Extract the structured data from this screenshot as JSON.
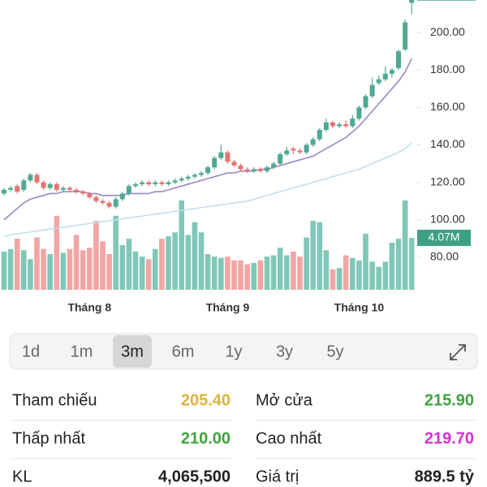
{
  "chart_data": {
    "type": "candlestick",
    "categories": [
      null,
      null,
      null,
      null,
      null,
      null,
      null,
      null,
      null,
      null,
      null,
      null,
      null,
      "Tháng 8",
      null,
      null,
      null,
      null,
      null,
      null,
      null,
      null,
      null,
      null,
      null,
      null,
      null,
      null,
      null,
      null,
      null,
      null,
      null,
      null,
      "Tháng 9",
      null,
      null,
      null,
      null,
      null,
      null,
      null,
      null,
      null,
      null,
      null,
      null,
      null,
      null,
      null,
      null,
      null,
      null,
      null,
      "Tháng 10",
      null,
      null,
      null,
      null,
      null,
      null,
      null,
      null
    ],
    "open": [
      114,
      116,
      118,
      116,
      121,
      124,
      120,
      117,
      119,
      116,
      117,
      116,
      115,
      114,
      112,
      110,
      109,
      107,
      111,
      114,
      118,
      119,
      120,
      119,
      120,
      119,
      120,
      121,
      122,
      123,
      124,
      125,
      128,
      133,
      136,
      131,
      129,
      127,
      126,
      127,
      126,
      128,
      130,
      135,
      138,
      137,
      136,
      140,
      143,
      148,
      152,
      150,
      151,
      150,
      154,
      160,
      166,
      173,
      175,
      178,
      181,
      191,
      215.9
    ],
    "high": [
      117,
      118,
      119,
      122,
      125,
      125,
      121,
      120,
      120,
      118,
      118,
      117,
      116,
      115,
      113,
      111,
      110,
      112,
      115,
      119,
      120,
      121,
      121,
      121,
      121,
      121,
      122,
      123,
      124,
      125,
      126,
      129,
      134,
      140,
      137,
      132,
      130,
      128,
      128,
      128,
      129,
      131,
      136,
      139,
      139,
      138,
      141,
      144,
      149,
      154,
      153,
      152,
      153,
      156,
      161,
      167,
      176,
      177,
      182,
      181,
      191,
      207,
      219.7
    ],
    "low": [
      113,
      115,
      114,
      115,
      120,
      119,
      116,
      116,
      115,
      115,
      115,
      114,
      113,
      111,
      109,
      108,
      106,
      106,
      110,
      113,
      117,
      118,
      118,
      118,
      118,
      118,
      119,
      120,
      121,
      122,
      123,
      124,
      127,
      132,
      130,
      128,
      126,
      125,
      125,
      125,
      125,
      127,
      129,
      134,
      135,
      135,
      135,
      139,
      142,
      147,
      149,
      149,
      149,
      149,
      153,
      159,
      165,
      172,
      174,
      176,
      180,
      190,
      210
    ],
    "close": [
      116,
      117,
      115,
      121,
      124,
      120,
      117,
      119,
      116,
      117,
      116,
      115,
      114,
      112,
      110,
      109,
      107,
      111,
      114,
      118,
      119,
      120,
      119,
      120,
      119,
      120,
      121,
      122,
      123,
      124,
      125,
      128,
      133,
      136,
      131,
      129,
      127,
      126,
      127,
      126,
      128,
      130,
      135,
      137,
      137,
      136,
      140,
      143,
      148,
      152,
      150,
      151,
      150,
      154,
      160,
      166,
      172,
      175,
      178,
      180,
      190,
      205.4,
      219.7
    ],
    "volume": [
      3.0,
      3.2,
      4.0,
      3.1,
      2.4,
      4.1,
      3.2,
      2.8,
      5.8,
      2.9,
      3.2,
      4.3,
      3.1,
      3.3,
      5.4,
      3.8,
      2.8,
      5.8,
      3.5,
      4.0,
      3.0,
      2.6,
      2.4,
      3.2,
      4.0,
      4.2,
      4.5,
      7.0,
      4.3,
      5.3,
      4.5,
      2.8,
      2.6,
      2.5,
      2.6,
      2.3,
      2.3,
      2.0,
      2.1,
      2.3,
      2.6,
      2.7,
      3.3,
      2.7,
      3.0,
      2.6,
      4.1,
      5.4,
      5.3,
      3.1,
      1.6,
      1.7,
      2.7,
      2.5,
      2.3,
      4.4,
      2.2,
      1.8,
      2.2,
      3.7,
      4.0,
      7.0,
      4.07
    ],
    "volume_label": "4.07M",
    "up_color": "#4fa893",
    "down_color": "#e57373",
    "up_volume_color": "#80c7b8",
    "down_volume_color": "#f2a5a5",
    "tag_color": "#3f9e86",
    "ylim": [
      62.6,
      217.4
    ],
    "yticks": [
      {
        "value": 80,
        "label": "80.00"
      },
      {
        "value": 100,
        "label": "100.00"
      },
      {
        "value": 120,
        "label": "120.00"
      },
      {
        "value": 140,
        "label": "140.00"
      },
      {
        "value": 160,
        "label": "160.00"
      },
      {
        "value": 180,
        "label": "180.00"
      },
      {
        "value": 200,
        "label": "200.00"
      }
    ],
    "vlim": [
      0,
      8.4
    ],
    "series": [
      {
        "color": "#9b88c2",
        "values": [
          100,
          103,
          106,
          109,
          111,
          112,
          113,
          114,
          114,
          115,
          115,
          115,
          115,
          114,
          114,
          113,
          113,
          113,
          113,
          114,
          114,
          114,
          114,
          115,
          115,
          116,
          117,
          118,
          119,
          120,
          121,
          122,
          123,
          124,
          125,
          125,
          126,
          126,
          126,
          127,
          127,
          128,
          129,
          130,
          131,
          132,
          133,
          134,
          136,
          138,
          140,
          142,
          144,
          147,
          150,
          154,
          158,
          162,
          166,
          170,
          174,
          179,
          186
        ]
      },
      {
        "color": "#bfe0ea",
        "values": [
          91,
          92,
          92.5,
          93,
          93.5,
          94,
          94.5,
          95,
          95.5,
          96,
          96.5,
          97,
          97.5,
          98,
          98.5,
          99,
          99.5,
          100,
          100.5,
          101,
          101.5,
          102,
          102.5,
          103,
          103.5,
          104,
          104.5,
          105,
          105.5,
          106,
          106.5,
          107,
          107.5,
          108,
          108.5,
          109,
          109.5,
          110,
          111,
          112,
          113,
          114,
          115,
          116,
          117,
          118,
          119,
          120,
          121,
          122,
          123,
          124,
          125,
          126,
          127,
          128.5,
          130,
          131.5,
          133,
          134.5,
          136,
          138,
          141
        ]
      }
    ]
  },
  "timeframes": {
    "options": [
      "1d",
      "1m",
      "3m",
      "6m",
      "1y",
      "3y",
      "5y"
    ],
    "selected": 2
  },
  "stats": [
    {
      "label": "Tham chiếu",
      "value": "205.40",
      "color": "#dcb43c"
    },
    {
      "label": "Mở cửa",
      "value": "215.90",
      "color": "#3ea33e"
    },
    {
      "label": "Thấp nhất",
      "value": "210.00",
      "color": "#3ea33e"
    },
    {
      "label": "Cao nhất",
      "value": "219.70",
      "color": "#d22ed2"
    },
    {
      "label": "KL",
      "value": "4,065,500",
      "color": "#222222"
    },
    {
      "label": "Giá trị",
      "value": "889.5 tỷ",
      "color": "#222222"
    }
  ]
}
